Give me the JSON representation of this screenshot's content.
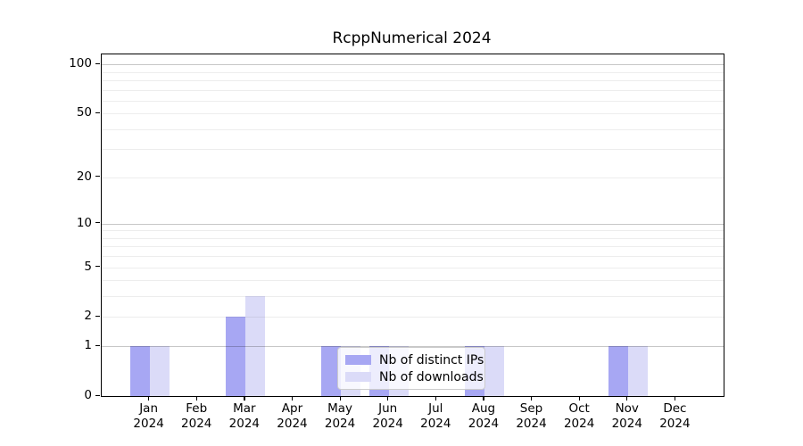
{
  "chart_data": {
    "type": "bar",
    "title": "RcppNumerical 2024",
    "categories": [
      "Jan",
      "Feb",
      "Mar",
      "Apr",
      "May",
      "Jun",
      "Jul",
      "Aug",
      "Sep",
      "Oct",
      "Nov",
      "Dec"
    ],
    "category_year": "2024",
    "series": [
      {
        "name": "Nb of distinct IPs",
        "color": "#a7a7f3",
        "values": [
          1,
          0,
          2,
          0,
          1,
          1,
          0,
          1,
          0,
          0,
          1,
          0
        ]
      },
      {
        "name": "Nb of downloads",
        "color": "#dbdbf8",
        "values": [
          1,
          0,
          3,
          0,
          1,
          1,
          0,
          1,
          0,
          0,
          1,
          0
        ]
      }
    ],
    "yscale": "log1p",
    "ylim": [
      0,
      115
    ],
    "ytick_labels": [
      0,
      1,
      2,
      5,
      10,
      20,
      50,
      100
    ],
    "major_gridlines": [
      1,
      10,
      100
    ],
    "minor_gridlines": [
      2,
      3,
      4,
      5,
      6,
      7,
      8,
      9,
      20,
      30,
      40,
      50,
      60,
      70,
      80,
      90
    ],
    "grid": true,
    "legend_position": "lower center",
    "colors": {
      "major_grid": "rgba(0,0,0,0.22)",
      "minor_grid": "rgba(0,0,0,0.07)",
      "spine": "#000000",
      "background": "#ffffff"
    }
  }
}
